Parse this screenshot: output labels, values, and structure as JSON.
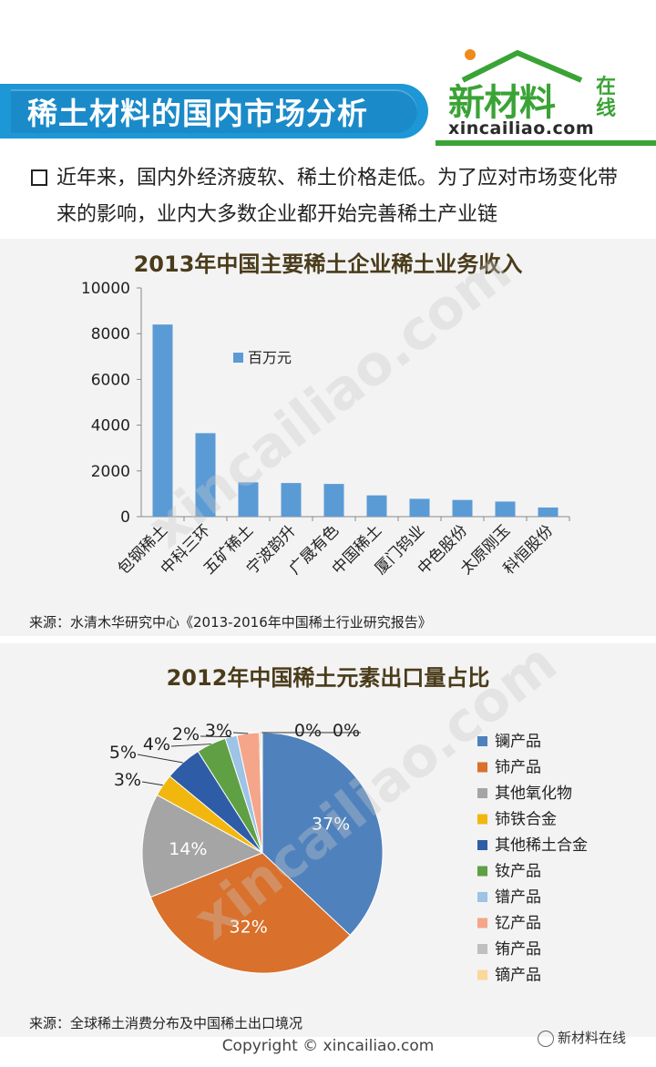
{
  "header": {
    "title": "稀土材料的国内市场分析",
    "logo_cn": "新材料",
    "logo_zx": "在线",
    "logo_en": "xincailiao.com"
  },
  "intro": {
    "text": "近年来，国内外经济疲软、稀土价格走低。为了应对市场变化带来的影响，业内大多数企业都开始完善稀土产业链"
  },
  "watermark": "xincailiao.com",
  "chart_data": [
    {
      "type": "bar",
      "title": "2013年中国主要稀土企业稀土业务收入",
      "categories": [
        "包钢稀土",
        "中科三环",
        "五矿稀土",
        "宁波韵升",
        "广晟有色",
        "中国稀土",
        "厦门钨业",
        "中色股份",
        "太原刚玉",
        "科恒股份"
      ],
      "series": [
        {
          "name": "百万元",
          "values": [
            8400,
            3650,
            1500,
            1470,
            1430,
            930,
            780,
            730,
            660,
            400
          ]
        }
      ],
      "ylim": [
        0,
        10000
      ],
      "yticks": [
        "0",
        "2000",
        "4000",
        "6000",
        "8000",
        "10000"
      ],
      "grid": false,
      "legend": "inside-left",
      "color": "#5b9bd5",
      "source": "来源：水清木华研究中心《2013-2016年中国稀土行业研究报告》"
    },
    {
      "type": "pie",
      "title": "2012年中国稀土元素出口量占比",
      "slices": [
        {
          "name": "镧产品",
          "value": 37,
          "label": "37%",
          "color": "#4f81bd"
        },
        {
          "name": "铈产品",
          "value": 32,
          "label": "32%",
          "color": "#d9702b"
        },
        {
          "name": "其他氧化物",
          "value": 14,
          "label": "14%",
          "color": "#a5a5a5"
        },
        {
          "name": "铈铁合金",
          "value": 3,
          "label": "3%",
          "color": "#f2b70f"
        },
        {
          "name": "其他稀土合金",
          "value": 5,
          "label": "5%",
          "color": "#2f5ca6"
        },
        {
          "name": "钕产品",
          "value": 4,
          "label": "4%",
          "color": "#5ea043"
        },
        {
          "name": "镨产品",
          "value": 1.6,
          "label": "2%",
          "color": "#9dc3e6"
        },
        {
          "name": "钇产品",
          "value": 3,
          "label": "3%",
          "color": "#f4a58a"
        },
        {
          "name": "铕产品",
          "value": 0.2,
          "label": "0%",
          "color": "#bfbfbf"
        },
        {
          "name": "镝产品",
          "value": 0.2,
          "label": "0%",
          "color": "#fbd79a"
        }
      ],
      "legend": "right",
      "source": "来源：全球稀土消费分布及中国稀土出口境况"
    }
  ],
  "footer": {
    "copyright": "Copyright © xincailiao.com",
    "wechat": "新材料在线"
  }
}
